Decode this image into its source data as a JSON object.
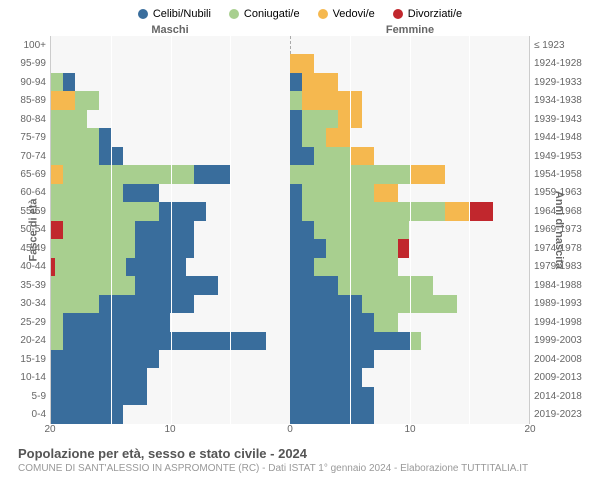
{
  "legend": [
    {
      "label": "Celibi/Nubili",
      "color": "#396d9c"
    },
    {
      "label": "Coniugati/e",
      "color": "#a8cf8f"
    },
    {
      "label": "Vedovi/e",
      "color": "#f5b84f"
    },
    {
      "label": "Divorziati/e",
      "color": "#c1272d"
    }
  ],
  "header": {
    "male": "Maschi",
    "female": "Femmine"
  },
  "axes": {
    "y_left_title": "Fasce di età",
    "y_right_title": "Anni di nascita",
    "age_labels": [
      "100+",
      "95-99",
      "90-94",
      "85-89",
      "80-84",
      "75-79",
      "70-74",
      "65-69",
      "60-64",
      "55-59",
      "50-54",
      "45-49",
      "40-44",
      "35-39",
      "30-34",
      "25-29",
      "20-24",
      "15-19",
      "10-14",
      "5-9",
      "0-4"
    ],
    "birth_labels": [
      "≤ 1923",
      "1924-1928",
      "1929-1933",
      "1934-1938",
      "1939-1943",
      "1944-1948",
      "1949-1953",
      "1954-1958",
      "1959-1963",
      "1964-1968",
      "1969-1973",
      "1974-1978",
      "1979-1983",
      "1984-1988",
      "1989-1993",
      "1994-1998",
      "1999-2003",
      "2004-2008",
      "2009-2013",
      "2014-2018",
      "2019-2023"
    ],
    "x_max": 20,
    "x_ticks": [
      20,
      10,
      0,
      10,
      20
    ]
  },
  "colors": {
    "celibi": "#396d9c",
    "coniugati": "#a8cf8f",
    "vedovi": "#f5b84f",
    "divorziati": "#c1272d",
    "plot_bg": "#f7f7f7",
    "grid": "#ffffff"
  },
  "data": {
    "rows": [
      {
        "m": {
          "c": 0,
          "co": 0,
          "v": 0,
          "d": 0
        },
        "f": {
          "c": 0,
          "co": 0,
          "v": 0,
          "d": 0
        }
      },
      {
        "m": {
          "c": 0,
          "co": 0,
          "v": 0,
          "d": 0
        },
        "f": {
          "c": 0,
          "co": 0,
          "v": 2,
          "d": 0
        }
      },
      {
        "m": {
          "c": 1,
          "co": 1,
          "v": 0,
          "d": 0
        },
        "f": {
          "c": 1,
          "co": 0,
          "v": 3,
          "d": 0
        }
      },
      {
        "m": {
          "c": 0,
          "co": 2,
          "v": 2,
          "d": 0
        },
        "f": {
          "c": 0,
          "co": 1,
          "v": 5,
          "d": 0
        }
      },
      {
        "m": {
          "c": 0,
          "co": 3,
          "v": 0,
          "d": 0
        },
        "f": {
          "c": 1,
          "co": 3,
          "v": 2,
          "d": 0
        }
      },
      {
        "m": {
          "c": 1,
          "co": 4,
          "v": 0,
          "d": 0
        },
        "f": {
          "c": 1,
          "co": 2,
          "v": 2,
          "d": 0
        }
      },
      {
        "m": {
          "c": 2,
          "co": 4,
          "v": 0,
          "d": 0
        },
        "f": {
          "c": 2,
          "co": 3,
          "v": 2,
          "d": 0
        }
      },
      {
        "m": {
          "c": 3,
          "co": 11,
          "v": 1,
          "d": 0
        },
        "f": {
          "c": 0,
          "co": 10,
          "v": 3,
          "d": 0
        }
      },
      {
        "m": {
          "c": 3,
          "co": 6,
          "v": 0,
          "d": 0
        },
        "f": {
          "c": 1,
          "co": 6,
          "v": 2,
          "d": 0
        }
      },
      {
        "m": {
          "c": 4,
          "co": 9,
          "v": 0,
          "d": 0
        },
        "f": {
          "c": 1,
          "co": 12,
          "v": 2,
          "d": 2
        }
      },
      {
        "m": {
          "c": 5,
          "co": 6,
          "v": 0,
          "d": 1
        },
        "f": {
          "c": 2,
          "co": 8,
          "v": 0,
          "d": 0
        }
      },
      {
        "m": {
          "c": 5,
          "co": 7,
          "v": 0,
          "d": 0
        },
        "f": {
          "c": 3,
          "co": 6,
          "v": 0,
          "d": 1
        }
      },
      {
        "m": {
          "c": 5,
          "co": 6,
          "v": 0,
          "d": 0.3
        },
        "f": {
          "c": 2,
          "co": 7,
          "v": 0,
          "d": 0
        }
      },
      {
        "m": {
          "c": 7,
          "co": 7,
          "v": 0,
          "d": 0
        },
        "f": {
          "c": 4,
          "co": 8,
          "v": 0,
          "d": 0
        }
      },
      {
        "m": {
          "c": 8,
          "co": 4,
          "v": 0,
          "d": 0
        },
        "f": {
          "c": 6,
          "co": 8,
          "v": 0,
          "d": 0
        }
      },
      {
        "m": {
          "c": 9,
          "co": 1,
          "v": 0,
          "d": 0
        },
        "f": {
          "c": 7,
          "co": 2,
          "v": 0,
          "d": 0
        }
      },
      {
        "m": {
          "c": 17,
          "co": 1,
          "v": 0,
          "d": 0
        },
        "f": {
          "c": 10,
          "co": 1,
          "v": 0,
          "d": 0
        }
      },
      {
        "m": {
          "c": 9,
          "co": 0,
          "v": 0,
          "d": 0
        },
        "f": {
          "c": 7,
          "co": 0,
          "v": 0,
          "d": 0
        }
      },
      {
        "m": {
          "c": 8,
          "co": 0,
          "v": 0,
          "d": 0
        },
        "f": {
          "c": 6,
          "co": 0,
          "v": 0,
          "d": 0
        }
      },
      {
        "m": {
          "c": 8,
          "co": 0,
          "v": 0,
          "d": 0
        },
        "f": {
          "c": 7,
          "co": 0,
          "v": 0,
          "d": 0
        }
      },
      {
        "m": {
          "c": 6,
          "co": 0,
          "v": 0,
          "d": 0
        },
        "f": {
          "c": 7,
          "co": 0,
          "v": 0,
          "d": 0
        }
      }
    ]
  },
  "footer": {
    "title": "Popolazione per età, sesso e stato civile - 2024",
    "subtitle": "COMUNE DI SANT'ALESSIO IN ASPROMONTE (RC) - Dati ISTAT 1° gennaio 2024 - Elaborazione TUTTITALIA.IT"
  }
}
